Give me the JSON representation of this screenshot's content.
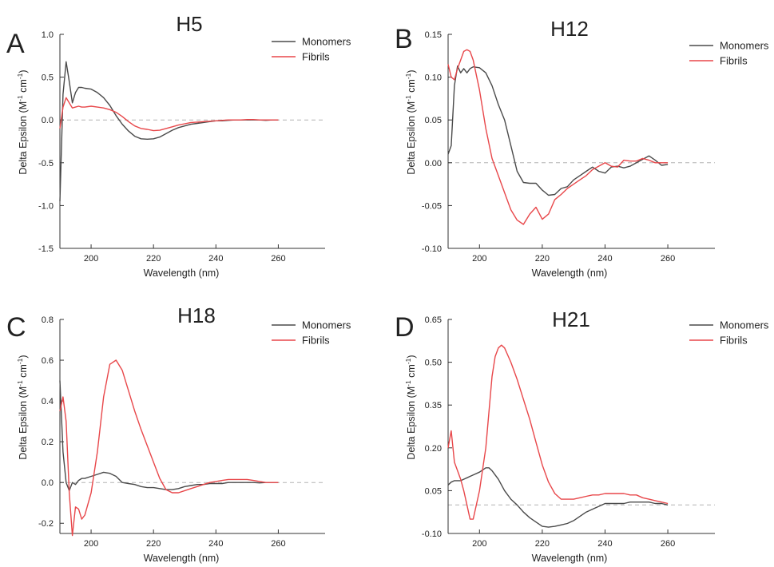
{
  "colors": {
    "monomers": "#4a4a4a",
    "fibrils": "#e8474a",
    "axis": "#333333",
    "zero_line": "#b3b3b3"
  },
  "chart_data": [
    {
      "type": "line",
      "panel_letter": "A",
      "title": "H5",
      "xlabel": "Wavelength (nm)",
      "ylabel_main": "Delta Epsilon (M",
      "ylabel_sup1": "-1",
      "ylabel_mid": " cm",
      "ylabel_sup2": "-1",
      "ylabel_end": ")",
      "xlim": [
        190,
        275
      ],
      "ylim": [
        -1.5,
        1.0
      ],
      "xticks": [
        200,
        220,
        240,
        260
      ],
      "yticks": [
        "1.0",
        "0.5",
        "0.0",
        "-0.5",
        "-1.0",
        "-1.5"
      ],
      "legend_position": "top-right",
      "zero_line": true,
      "series": [
        {
          "name": "Monomers",
          "x": [
            190,
            191,
            192,
            193,
            194,
            195,
            196,
            197,
            198,
            200,
            202,
            204,
            206,
            208,
            210,
            212,
            214,
            216,
            218,
            220,
            222,
            224,
            226,
            228,
            230,
            232,
            234,
            236,
            238,
            240,
            242,
            244,
            246,
            248,
            250,
            252,
            254,
            256,
            258,
            260
          ],
          "y": [
            -0.95,
            0.3,
            0.68,
            0.45,
            0.2,
            0.32,
            0.38,
            0.38,
            0.37,
            0.36,
            0.32,
            0.26,
            0.17,
            0.05,
            -0.05,
            -0.13,
            -0.19,
            -0.22,
            -0.225,
            -0.22,
            -0.2,
            -0.16,
            -0.12,
            -0.09,
            -0.07,
            -0.05,
            -0.04,
            -0.03,
            -0.02,
            -0.01,
            -0.01,
            -0.005,
            0.0,
            0.0,
            0.0,
            0.0,
            0.0,
            -0.005,
            0.0,
            0.0
          ]
        },
        {
          "name": "Fibrils",
          "x": [
            190,
            191,
            192,
            193,
            194,
            195,
            196,
            197,
            198,
            200,
            202,
            204,
            206,
            208,
            210,
            212,
            214,
            216,
            218,
            220,
            222,
            224,
            226,
            228,
            230,
            232,
            234,
            236,
            238,
            240,
            242,
            244,
            246,
            248,
            250,
            252,
            254,
            256,
            258,
            260
          ],
          "y": [
            -0.1,
            0.15,
            0.26,
            0.2,
            0.14,
            0.15,
            0.16,
            0.15,
            0.15,
            0.16,
            0.15,
            0.14,
            0.12,
            0.09,
            0.04,
            -0.02,
            -0.07,
            -0.1,
            -0.11,
            -0.125,
            -0.12,
            -0.1,
            -0.08,
            -0.06,
            -0.045,
            -0.03,
            -0.025,
            -0.02,
            -0.015,
            -0.01,
            -0.005,
            0.0,
            0.0,
            0.0,
            0.005,
            0.005,
            0.0,
            0.0,
            0.0,
            0.0
          ]
        }
      ]
    },
    {
      "type": "line",
      "panel_letter": "B",
      "title": "H12",
      "xlabel": "Wavelength (nm)",
      "ylabel_main": "Delta Epsilon (M",
      "ylabel_sup1": "-1",
      "ylabel_mid": " cm",
      "ylabel_sup2": "-1",
      "ylabel_end": ")",
      "xlim": [
        190,
        275
      ],
      "ylim": [
        -0.1,
        0.15
      ],
      "xticks": [
        200,
        220,
        240,
        260
      ],
      "yticks": [
        "0.15",
        "0.10",
        "0.05",
        "0.00",
        "-0.05",
        "-0.10"
      ],
      "legend_position": "top-right",
      "zero_line": true,
      "series": [
        {
          "name": "Monomers",
          "x": [
            190,
            191,
            192,
            193,
            194,
            195,
            196,
            197,
            198,
            200,
            202,
            204,
            206,
            208,
            210,
            212,
            214,
            216,
            218,
            220,
            222,
            224,
            226,
            228,
            230,
            232,
            234,
            236,
            238,
            240,
            242,
            244,
            246,
            248,
            250,
            252,
            254,
            256,
            258,
            260
          ],
          "y": [
            0.01,
            0.02,
            0.09,
            0.113,
            0.105,
            0.11,
            0.105,
            0.11,
            0.112,
            0.111,
            0.105,
            0.09,
            0.068,
            0.05,
            0.02,
            -0.01,
            -0.023,
            -0.024,
            -0.024,
            -0.032,
            -0.038,
            -0.037,
            -0.03,
            -0.028,
            -0.02,
            -0.015,
            -0.01,
            -0.005,
            -0.01,
            -0.012,
            -0.005,
            -0.004,
            -0.006,
            -0.004,
            0.0,
            0.004,
            0.008,
            0.003,
            -0.003,
            -0.002
          ]
        },
        {
          "name": "Fibrils",
          "x": [
            190,
            191,
            192,
            193,
            194,
            195,
            196,
            197,
            198,
            200,
            202,
            204,
            206,
            208,
            210,
            212,
            214,
            216,
            218,
            220,
            222,
            224,
            226,
            228,
            230,
            232,
            234,
            236,
            238,
            240,
            242,
            244,
            246,
            248,
            250,
            252,
            254,
            256,
            258,
            260
          ],
          "y": [
            0.115,
            0.1,
            0.097,
            0.11,
            0.12,
            0.13,
            0.132,
            0.13,
            0.12,
            0.085,
            0.04,
            0.005,
            -0.015,
            -0.035,
            -0.055,
            -0.067,
            -0.072,
            -0.06,
            -0.052,
            -0.066,
            -0.06,
            -0.043,
            -0.037,
            -0.03,
            -0.025,
            -0.02,
            -0.015,
            -0.008,
            -0.004,
            0.0,
            -0.004,
            -0.005,
            0.003,
            0.002,
            0.002,
            0.005,
            0.003,
            0.0,
            0.0,
            0.0
          ]
        }
      ]
    },
    {
      "type": "line",
      "panel_letter": "C",
      "title": "H18",
      "xlabel": "Wavelength (nm)",
      "ylabel_main": "Delta Epsilon (M",
      "ylabel_sup1": "-1",
      "ylabel_mid": " cm",
      "ylabel_sup2": "-1",
      "ylabel_end": ")",
      "xlim": [
        190,
        275
      ],
      "ylim": [
        -0.25,
        0.8
      ],
      "xticks": [
        200,
        220,
        240,
        260
      ],
      "yticks": [
        "0.8",
        "0.6",
        "0.4",
        "0.2",
        "0.0",
        "-0.2"
      ],
      "legend_position": "top-right",
      "zero_line": true,
      "series": [
        {
          "name": "Monomers",
          "x": [
            190,
            191,
            192,
            193,
            194,
            195,
            196,
            197,
            198,
            200,
            202,
            204,
            206,
            208,
            210,
            212,
            214,
            216,
            218,
            220,
            222,
            224,
            226,
            228,
            230,
            232,
            234,
            236,
            238,
            240,
            242,
            244,
            246,
            248,
            250,
            252,
            254,
            256,
            258,
            260
          ],
          "y": [
            0.5,
            0.15,
            0.0,
            -0.04,
            0.0,
            -0.01,
            0.01,
            0.02,
            0.02,
            0.03,
            0.04,
            0.05,
            0.045,
            0.03,
            0.0,
            -0.005,
            -0.01,
            -0.02,
            -0.025,
            -0.025,
            -0.03,
            -0.035,
            -0.035,
            -0.03,
            -0.02,
            -0.015,
            -0.01,
            -0.01,
            -0.005,
            -0.005,
            -0.005,
            0.0,
            0.0,
            0.0,
            0.0,
            0.0,
            -0.002,
            0.0,
            0.0,
            0.0
          ]
        },
        {
          "name": "Fibrils",
          "x": [
            190,
            191,
            192,
            193,
            194,
            195,
            196,
            197,
            198,
            200,
            202,
            204,
            206,
            208,
            210,
            212,
            214,
            216,
            218,
            220,
            222,
            224,
            226,
            228,
            230,
            232,
            234,
            236,
            238,
            240,
            242,
            244,
            246,
            248,
            250,
            252,
            254,
            256,
            258,
            260
          ],
          "y": [
            0.35,
            0.42,
            0.3,
            -0.05,
            -0.26,
            -0.12,
            -0.13,
            -0.18,
            -0.16,
            -0.05,
            0.15,
            0.42,
            0.58,
            0.6,
            0.55,
            0.45,
            0.35,
            0.26,
            0.18,
            0.1,
            0.02,
            -0.035,
            -0.05,
            -0.05,
            -0.04,
            -0.03,
            -0.02,
            -0.01,
            0.0,
            0.005,
            0.01,
            0.015,
            0.015,
            0.015,
            0.015,
            0.01,
            0.005,
            0.0,
            0.0,
            0.0
          ]
        }
      ]
    },
    {
      "type": "line",
      "panel_letter": "D",
      "title": "H21",
      "xlabel": "Wavelength (nm)",
      "ylabel_main": "Delta Epsilon (M",
      "ylabel_sup1": "-1",
      "ylabel_mid": " cm",
      "ylabel_sup2": "-1",
      "ylabel_end": ")",
      "xlim": [
        190,
        275
      ],
      "ylim": [
        -0.1,
        0.65
      ],
      "xticks": [
        200,
        220,
        240,
        260
      ],
      "yticks": [
        "0.65",
        "0.50",
        "0.35",
        "0.20",
        "0.05",
        "-0.10"
      ],
      "legend_position": "top-right",
      "zero_line": true,
      "series": [
        {
          "name": "Monomers",
          "x": [
            190,
            191,
            192,
            193,
            194,
            195,
            196,
            197,
            198,
            200,
            202,
            203,
            204,
            206,
            208,
            210,
            212,
            214,
            216,
            218,
            220,
            222,
            224,
            226,
            228,
            230,
            232,
            234,
            236,
            238,
            240,
            242,
            244,
            246,
            248,
            250,
            252,
            254,
            256,
            258,
            260
          ],
          "y": [
            0.07,
            0.08,
            0.085,
            0.085,
            0.085,
            0.09,
            0.095,
            0.1,
            0.105,
            0.115,
            0.13,
            0.13,
            0.12,
            0.09,
            0.05,
            0.02,
            0.0,
            -0.025,
            -0.045,
            -0.06,
            -0.075,
            -0.078,
            -0.075,
            -0.07,
            -0.065,
            -0.055,
            -0.04,
            -0.025,
            -0.015,
            -0.005,
            0.005,
            0.005,
            0.005,
            0.005,
            0.01,
            0.01,
            0.01,
            0.01,
            0.005,
            0.005,
            0.0
          ]
        },
        {
          "name": "Fibrils",
          "x": [
            190,
            191,
            192,
            193,
            194,
            195,
            196,
            197,
            198,
            200,
            202,
            204,
            205,
            206,
            207,
            208,
            210,
            212,
            214,
            216,
            218,
            220,
            222,
            224,
            226,
            228,
            230,
            232,
            234,
            236,
            238,
            240,
            242,
            244,
            246,
            248,
            250,
            252,
            254,
            256,
            258,
            260
          ],
          "y": [
            0.2,
            0.26,
            0.15,
            0.12,
            0.09,
            0.05,
            0.0,
            -0.05,
            -0.05,
            0.05,
            0.2,
            0.45,
            0.52,
            0.55,
            0.56,
            0.55,
            0.5,
            0.44,
            0.37,
            0.3,
            0.22,
            0.14,
            0.08,
            0.04,
            0.02,
            0.02,
            0.02,
            0.025,
            0.03,
            0.035,
            0.035,
            0.04,
            0.04,
            0.04,
            0.04,
            0.035,
            0.035,
            0.025,
            0.02,
            0.015,
            0.01,
            0.005
          ]
        }
      ]
    }
  ]
}
